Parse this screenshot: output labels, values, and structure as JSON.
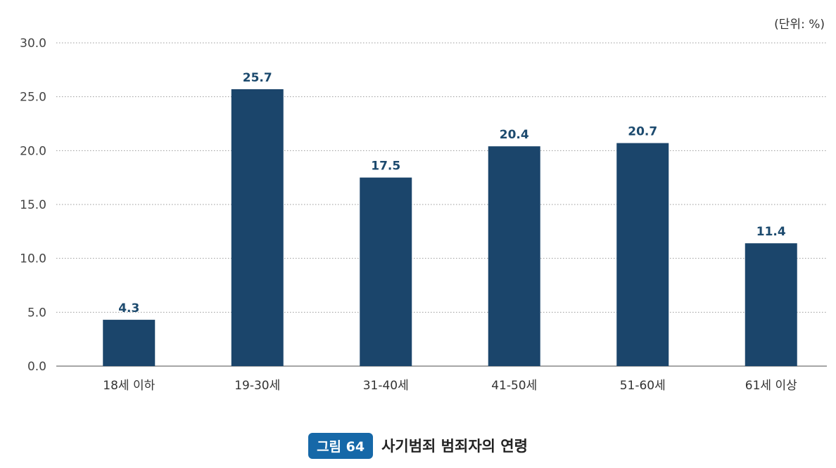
{
  "unit_label": "(단위: %)",
  "caption": {
    "badge": "그림 64",
    "title": "사기범죄 범죄자의 연령"
  },
  "colors": {
    "bar": "#1b456b",
    "grid": "#9a9a9a",
    "axis": "#888888",
    "label": "#1c4a6e",
    "badge": "#1668a8"
  },
  "chart_data": {
    "type": "bar",
    "categories": [
      "18세 이하",
      "19-30세",
      "31-40세",
      "41-50세",
      "51-60세",
      "61세 이상"
    ],
    "values": [
      4.3,
      25.7,
      17.5,
      20.4,
      20.7,
      11.4
    ],
    "data_labels": [
      "4.3",
      "25.7",
      "17.5",
      "20.4",
      "20.7",
      "11.4"
    ],
    "yticks": [
      "0.0",
      "5.0",
      "10.0",
      "15.0",
      "20.0",
      "25.0",
      "30.0"
    ],
    "ylim": [
      0,
      30
    ],
    "grid": true
  }
}
